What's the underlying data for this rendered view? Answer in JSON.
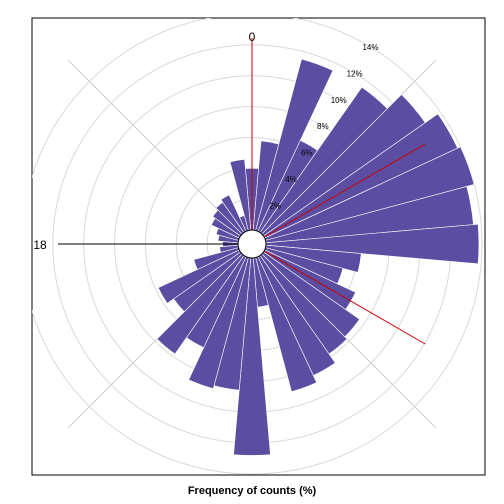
{
  "chart_data": {
    "type": "polar-bar",
    "title": "",
    "xlabel": "Frequency of counts (%)",
    "direction_labels": [
      {
        "label": "0",
        "angle_deg": 0
      },
      {
        "label": "18",
        "angle_deg": 270
      }
    ],
    "radial_ticks": [
      {
        "value": 2,
        "label": "2%"
      },
      {
        "value": 4,
        "label": "4%"
      },
      {
        "value": 6,
        "label": "6%"
      },
      {
        "value": 8,
        "label": "8%"
      },
      {
        "value": 10,
        "label": "10%"
      },
      {
        "value": 12,
        "label": "12%"
      },
      {
        "value": 14,
        "label": "14%"
      }
    ],
    "rmax": 14,
    "bin_width_deg": 10,
    "bins": [
      {
        "angle_deg": 0,
        "value": 4.0
      },
      {
        "angle_deg": 10,
        "value": 5.8
      },
      {
        "angle_deg": 20,
        "value": 11.5
      },
      {
        "angle_deg": 30,
        "value": 6.5
      },
      {
        "angle_deg": 40,
        "value": 11.5
      },
      {
        "angle_deg": 50,
        "value": 12.8
      },
      {
        "angle_deg": 60,
        "value": 13.8
      },
      {
        "angle_deg": 70,
        "value": 14.0
      },
      {
        "angle_deg": 80,
        "value": 13.5
      },
      {
        "angle_deg": 90,
        "value": 13.8
      },
      {
        "angle_deg": 100,
        "value": 6.2
      },
      {
        "angle_deg": 110,
        "value": 5.2
      },
      {
        "angle_deg": 120,
        "value": 6.5
      },
      {
        "angle_deg": 130,
        "value": 7.6
      },
      {
        "angle_deg": 140,
        "value": 7.8
      },
      {
        "angle_deg": 150,
        "value": 8.5
      },
      {
        "angle_deg": 160,
        "value": 9.0
      },
      {
        "angle_deg": 170,
        "value": 3.2
      },
      {
        "angle_deg": 180,
        "value": 12.8
      },
      {
        "angle_deg": 190,
        "value": 8.6
      },
      {
        "angle_deg": 200,
        "value": 8.8
      },
      {
        "angle_deg": 210,
        "value": 6.5
      },
      {
        "angle_deg": 220,
        "value": 7.8
      },
      {
        "angle_deg": 230,
        "value": 5.3
      },
      {
        "angle_deg": 240,
        "value": 5.8
      },
      {
        "angle_deg": 250,
        "value": 3.0
      },
      {
        "angle_deg": 260,
        "value": 1.2
      },
      {
        "angle_deg": 270,
        "value": 1.0
      },
      {
        "angle_deg": 280,
        "value": 1.3
      },
      {
        "angle_deg": 290,
        "value": 1.5
      },
      {
        "angle_deg": 300,
        "value": 2.0
      },
      {
        "angle_deg": 310,
        "value": 2.2
      },
      {
        "angle_deg": 320,
        "value": 2.4
      },
      {
        "angle_deg": 330,
        "value": 2.6
      },
      {
        "angle_deg": 340,
        "value": 1.0
      },
      {
        "angle_deg": 350,
        "value": 4.6
      }
    ],
    "reference_lines_deg": [
      0,
      60,
      120
    ],
    "axis_lines_deg": [
      270
    ],
    "grid_diagonals_deg": [
      45,
      135,
      225,
      315
    ],
    "colors": {
      "petal": "#5b4ea2",
      "reference": "#cc0000",
      "grid": "#d9d9d9"
    }
  }
}
